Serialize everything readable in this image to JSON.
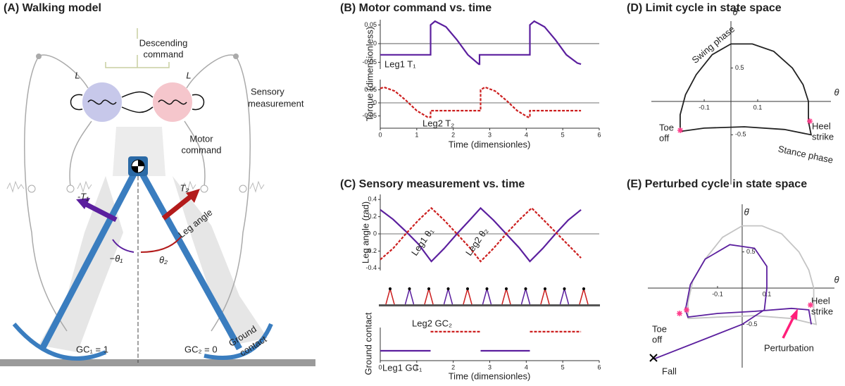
{
  "panel_a": {
    "title": "(A) Walking model",
    "labels": [
      "Descending",
      "command",
      "L",
      "L",
      "Sensory",
      "measurement",
      "Motor",
      "command",
      "-T₁",
      "T₂",
      "Leg angle",
      "−θ₁",
      "θ₂",
      "Ground",
      "contact",
      "GC₁ = 1",
      "GC₂ = 0"
    ]
  },
  "chart_data": [
    {
      "type": "line",
      "title": "(B) Motor command vs. time",
      "ylabel": "Torque (dimensionless)",
      "xlim": [
        0,
        6
      ],
      "ylim": [
        -0.068,
        0.064
      ],
      "yticks": [
        0.05,
        0,
        -0.05
      ],
      "zero_line": true,
      "series": [
        {
          "name": "Leg1 T₁",
          "color": "#5b1f9e",
          "dash": false,
          "x": [
            0,
            1.38,
            1.38,
            1.5,
            1.8,
            2.1,
            2.4,
            2.7,
            2.72,
            2.72,
            4.1,
            4.1,
            4.22,
            4.5,
            4.8,
            5.1,
            5.4,
            5.5
          ],
          "values": [
            -0.03,
            -0.03,
            0.05,
            0.06,
            0.045,
            0.01,
            -0.03,
            -0.055,
            -0.055,
            -0.03,
            -0.03,
            0.05,
            0.06,
            0.045,
            0.01,
            -0.03,
            -0.052,
            -0.055
          ]
        }
      ]
    },
    {
      "type": "line",
      "xlabel": "Time (dimensionles)",
      "xlim": [
        0,
        6
      ],
      "ylim": [
        -0.097,
        0.089
      ],
      "xticks": [
        0,
        1,
        2,
        3,
        4,
        5,
        6
      ],
      "yticks": [
        0.05,
        0,
        -0.05
      ],
      "zero_line": true,
      "series": [
        {
          "name": "Leg2 T₂",
          "color": "#cc1f1f",
          "dash": true,
          "x": [
            0,
            0.1,
            0.4,
            0.7,
            1.0,
            1.3,
            1.38,
            1.38,
            2.75,
            2.75,
            2.87,
            3.15,
            3.45,
            3.75,
            4.05,
            4.1,
            4.1,
            5.5
          ],
          "values": [
            0.055,
            0.06,
            0.045,
            0.01,
            -0.03,
            -0.055,
            -0.055,
            -0.03,
            -0.03,
            0.05,
            0.06,
            0.045,
            0.01,
            -0.03,
            -0.055,
            -0.055,
            -0.03,
            -0.03
          ]
        }
      ]
    },
    {
      "type": "line",
      "title": "(C) Sensory measurement vs. time",
      "ylabel": "Leg angle (rad)",
      "xlim": [
        0,
        6
      ],
      "ylim": [
        -0.426,
        0.459
      ],
      "yticks": [
        0.4,
        0.2,
        0,
        -0.2,
        -0.4
      ],
      "zero_line": true,
      "series": [
        {
          "name": "Leg1 θ₁",
          "color": "#5b1f9e",
          "dash": false,
          "x": [
            0,
            0.35,
            0.7,
            1.05,
            1.4,
            1.75,
            2.1,
            2.45,
            2.75,
            3.1,
            3.45,
            3.8,
            4.1,
            4.45,
            4.8,
            5.15,
            5.5
          ],
          "values": [
            0.28,
            0.17,
            0.03,
            -0.12,
            -0.32,
            -0.17,
            0.0,
            0.16,
            0.3,
            0.16,
            0.0,
            -0.16,
            -0.32,
            -0.17,
            0.0,
            0.16,
            0.28
          ]
        },
        {
          "name": "Leg2 θ₂",
          "color": "#cc1f1f",
          "dash": true,
          "x": [
            0,
            0.35,
            0.7,
            1.05,
            1.4,
            1.75,
            2.1,
            2.45,
            2.75,
            3.1,
            3.45,
            3.8,
            4.15,
            4.5,
            4.85,
            5.2,
            5.5
          ],
          "values": [
            -0.3,
            -0.17,
            0.0,
            0.16,
            0.3,
            0.16,
            0.0,
            -0.16,
            -0.32,
            -0.17,
            0.0,
            0.16,
            0.3,
            0.15,
            0.0,
            -0.15,
            -0.28
          ]
        }
      ]
    },
    {
      "type": "line",
      "ylabel": "Ground contact",
      "xlabel": "Time (dimensionles)",
      "xlim": [
        0,
        6
      ],
      "ylim": [
        -0.52,
        1.22
      ],
      "xticks": [
        0,
        1,
        2,
        3,
        4,
        5,
        6
      ],
      "series": [
        {
          "name": "Leg2 GC₂",
          "color": "#cc1f1f",
          "dash": true,
          "x": [
            0,
            1.38,
            1.38,
            2.75,
            2.75,
            4.1,
            4.1,
            5.5
          ],
          "values": [
            null,
            null,
            1,
            1,
            null,
            null,
            1,
            1
          ]
        },
        {
          "name": "Leg1 GC₁",
          "color": "#5b1f9e",
          "dash": false,
          "x": [
            0,
            1.38,
            1.38,
            2.75,
            2.75,
            4.1,
            4.1,
            5.5
          ],
          "values": [
            0,
            0,
            null,
            null,
            0,
            0,
            null,
            null
          ]
        }
      ]
    },
    {
      "type": "phase",
      "title": "(D) Limit cycle in state space",
      "xlabel": "θ",
      "ylabel": "θ̇",
      "xlim": [
        -0.324,
        0.374
      ],
      "ylim": [
        -1.245,
        1.202
      ],
      "xticks": [
        -0.1,
        0.1
      ],
      "yticks": [
        0.5,
        -0.5
      ],
      "annotations": [
        "Swing phase",
        "Heel",
        "strike",
        "Toe",
        "off",
        "Stance phase"
      ],
      "series": [
        {
          "color": "#222222",
          "x": [
            -0.19,
            -0.19,
            -0.17,
            -0.13,
            -0.07,
            0,
            0.08,
            0.16,
            0.23,
            0.27,
            0.29,
            0.29,
            0.3,
            0.2,
            0.05,
            -0.1,
            -0.19
          ],
          "values": [
            -0.45,
            -0.2,
            0.1,
            0.4,
            0.7,
            0.86,
            0.86,
            0.75,
            0.5,
            0.25,
            0,
            -0.3,
            -0.5,
            -0.42,
            -0.38,
            -0.4,
            -0.45
          ]
        }
      ]
    },
    {
      "type": "phase",
      "title": "(E) Perturbed cycle in state space",
      "xlabel": "θ",
      "ylabel": "θ̇",
      "xlim": [
        -0.411,
        0.374
      ],
      "ylim": [
        -1.098,
        1.157
      ],
      "xticks": [
        -0.1,
        0.1
      ],
      "yticks": [
        0.5,
        -0.5
      ],
      "annotations": [
        "Heel",
        "strike",
        "Toe",
        "off",
        "Perturbation",
        "Fall"
      ],
      "series": [
        {
          "color": "#c4c4c4",
          "x": [
            -0.22,
            -0.22,
            -0.2,
            -0.15,
            -0.08,
            0,
            0.08,
            0.16,
            0.23,
            0.27,
            0.29,
            0.29,
            0.3,
            0.2,
            0.05,
            -0.1,
            -0.22
          ],
          "values": [
            -0.42,
            -0.2,
            0.1,
            0.4,
            0.7,
            0.86,
            0.86,
            0.75,
            0.5,
            0.25,
            0,
            -0.3,
            -0.5,
            -0.42,
            -0.38,
            -0.4,
            -0.42
          ]
        },
        {
          "color": "#5b1f9e",
          "x": [
            0.28,
            0.27,
            0.2,
            0.05,
            -0.1,
            -0.22,
            -0.23,
            -0.21,
            -0.15,
            -0.05,
            0.05,
            0.1,
            0.1,
            0.09,
            0,
            -0.15,
            -0.36
          ],
          "values": [
            -0.5,
            -0.3,
            -0.28,
            -0.32,
            -0.35,
            -0.4,
            -0.3,
            0.05,
            0.4,
            0.6,
            0.55,
            0.3,
            0,
            -0.3,
            -0.5,
            -0.7,
            -0.98
          ]
        }
      ]
    }
  ]
}
